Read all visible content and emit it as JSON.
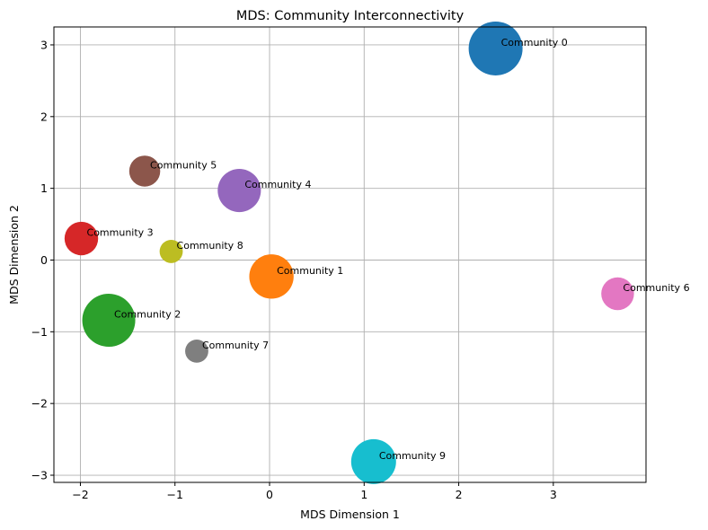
{
  "chart_data": {
    "type": "scatter",
    "title": "MDS: Community Interconnectivity",
    "xlabel": "MDS Dimension 1",
    "ylabel": "MDS Dimension 2",
    "xlim": [
      -2.28,
      3.98
    ],
    "ylim": [
      -3.1,
      3.25
    ],
    "xticks": [
      -2,
      -1,
      0,
      1,
      2,
      3
    ],
    "yticks": [
      -3,
      -2,
      -1,
      0,
      1,
      2,
      3
    ],
    "tick_labels_x": [
      "−2",
      "−1",
      "0",
      "1",
      "2",
      "3"
    ],
    "tick_labels_y": [
      "−3",
      "−2",
      "−1",
      "0",
      "1",
      "2",
      "3"
    ],
    "grid": true,
    "points": [
      {
        "label": "Community 0",
        "x": 2.39,
        "y": 2.95,
        "size": 1.0,
        "color": "#1f77b4"
      },
      {
        "label": "Community 1",
        "x": 0.02,
        "y": -0.23,
        "size": 0.62,
        "color": "#ff7f0e"
      },
      {
        "label": "Community 2",
        "x": -1.7,
        "y": -0.84,
        "size": 0.96,
        "color": "#2ca02c"
      },
      {
        "label": "Community 3",
        "x": -1.99,
        "y": 0.3,
        "size": 0.3,
        "color": "#d62728"
      },
      {
        "label": "Community 4",
        "x": -0.32,
        "y": 0.97,
        "size": 0.58,
        "color": "#9467bd"
      },
      {
        "label": "Community 5",
        "x": -1.32,
        "y": 1.24,
        "size": 0.24,
        "color": "#8c564b"
      },
      {
        "label": "Community 6",
        "x": 3.68,
        "y": -0.47,
        "size": 0.28,
        "color": "#e377c2"
      },
      {
        "label": "Community 7",
        "x": -0.77,
        "y": -1.27,
        "size": 0.1,
        "color": "#7f7f7f"
      },
      {
        "label": "Community 8",
        "x": -1.04,
        "y": 0.12,
        "size": 0.1,
        "color": "#bcbd22"
      },
      {
        "label": "Community 9",
        "x": 1.1,
        "y": -2.81,
        "size": 0.64,
        "color": "#17becf"
      }
    ]
  }
}
